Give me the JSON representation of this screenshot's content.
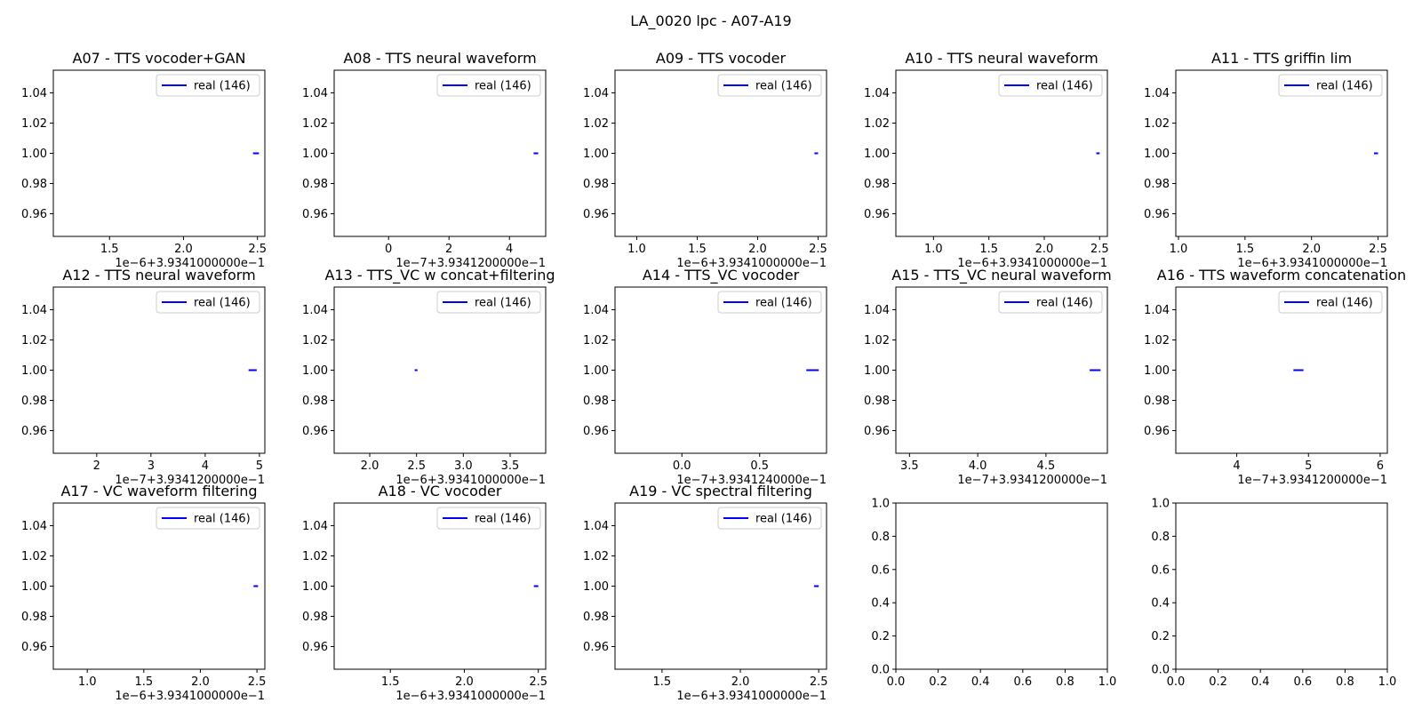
{
  "figure": {
    "suptitle": "LA_0020 lpc - A07-A19",
    "series_color": "#0000ff"
  },
  "chart_data": [
    {
      "type": "line",
      "title": "A07 - TTS vocoder+GAN",
      "xlim": [
        1.12,
        2.55
      ],
      "ylim": [
        0.945,
        1.055
      ],
      "xticks": [
        1.5,
        2.0,
        2.5
      ],
      "xtick_labels": [
        "1.5",
        "2.0",
        "2.5"
      ],
      "yticks": [
        0.96,
        0.98,
        1.0,
        1.02,
        1.04
      ],
      "ytick_labels": [
        "0.96",
        "0.98",
        "1.00",
        "1.02",
        "1.04"
      ],
      "offset": "1e−6+3.9341000000e−1",
      "legend": "real (146)",
      "legend_loc": "upper right",
      "series": [
        {
          "name": "real (146)",
          "x": [
            2.47,
            2.51
          ],
          "y": [
            1.0,
            1.0
          ]
        }
      ]
    },
    {
      "type": "line",
      "title": "A08 - TTS neural waveform",
      "xlim": [
        -1.8,
        5.2
      ],
      "ylim": [
        0.945,
        1.055
      ],
      "xticks": [
        0,
        2,
        4
      ],
      "xtick_labels": [
        "0",
        "2",
        "4"
      ],
      "yticks": [
        0.96,
        0.98,
        1.0,
        1.02,
        1.04
      ],
      "ytick_labels": [
        "0.96",
        "0.98",
        "1.00",
        "1.02",
        "1.04"
      ],
      "offset": "1e−7+3.9341200000e−1",
      "legend": "real (146)",
      "legend_loc": "upper right",
      "series": [
        {
          "name": "real (146)",
          "x": [
            4.8,
            4.95
          ],
          "y": [
            1.0,
            1.0
          ]
        }
      ]
    },
    {
      "type": "line",
      "title": "A09 - TTS vocoder",
      "xlim": [
        0.82,
        2.57
      ],
      "ylim": [
        0.945,
        1.055
      ],
      "xticks": [
        1.0,
        1.5,
        2.0,
        2.5
      ],
      "xtick_labels": [
        "1.0",
        "1.5",
        "2.0",
        "2.5"
      ],
      "yticks": [
        0.96,
        0.98,
        1.0,
        1.02,
        1.04
      ],
      "ytick_labels": [
        "0.96",
        "0.98",
        "1.00",
        "1.02",
        "1.04"
      ],
      "offset": "1e−6+3.9341000000e−1",
      "legend": "real (146)",
      "legend_loc": "upper right",
      "series": [
        {
          "name": "real (146)",
          "x": [
            2.47,
            2.5
          ],
          "y": [
            1.0,
            1.0
          ]
        }
      ]
    },
    {
      "type": "line",
      "title": "A10 - TTS neural waveform",
      "xlim": [
        0.66,
        2.57
      ],
      "ylim": [
        0.945,
        1.055
      ],
      "xticks": [
        1.0,
        1.5,
        2.0,
        2.5
      ],
      "xtick_labels": [
        "1.0",
        "1.5",
        "2.0",
        "2.5"
      ],
      "yticks": [
        0.96,
        0.98,
        1.0,
        1.02,
        1.04
      ],
      "ytick_labels": [
        "0.96",
        "0.98",
        "1.00",
        "1.02",
        "1.04"
      ],
      "offset": "1e−6+3.9341000000e−1",
      "legend": "real (146)",
      "legend_loc": "upper right",
      "series": [
        {
          "name": "real (146)",
          "x": [
            2.47,
            2.5
          ],
          "y": [
            1.0,
            1.0
          ]
        }
      ]
    },
    {
      "type": "line",
      "title": "A11 - TTS griffin lim",
      "xlim": [
        0.98,
        2.57
      ],
      "ylim": [
        0.945,
        1.055
      ],
      "xticks": [
        1.0,
        1.5,
        2.0,
        2.5
      ],
      "xtick_labels": [
        "1.0",
        "1.5",
        "2.0",
        "2.5"
      ],
      "yticks": [
        0.96,
        0.98,
        1.0,
        1.02,
        1.04
      ],
      "ytick_labels": [
        "0.96",
        "0.98",
        "1.00",
        "1.02",
        "1.04"
      ],
      "offset": "1e−6+3.9341000000e−1",
      "legend": "real (146)",
      "legend_loc": "upper right",
      "series": [
        {
          "name": "real (146)",
          "x": [
            2.47,
            2.5
          ],
          "y": [
            1.0,
            1.0
          ]
        }
      ]
    },
    {
      "type": "line",
      "title": "A12 - TTS neural waveform",
      "xlim": [
        1.2,
        5.1
      ],
      "ylim": [
        0.945,
        1.055
      ],
      "xticks": [
        2,
        3,
        4,
        5
      ],
      "xtick_labels": [
        "2",
        "3",
        "4",
        "5"
      ],
      "yticks": [
        0.96,
        0.98,
        1.0,
        1.02,
        1.04
      ],
      "ytick_labels": [
        "0.96",
        "0.98",
        "1.00",
        "1.02",
        "1.04"
      ],
      "offset": "1e−7+3.9341200000e−1",
      "legend": "real (146)",
      "legend_loc": "upper right",
      "series": [
        {
          "name": "real (146)",
          "x": [
            4.8,
            4.95
          ],
          "y": [
            1.0,
            1.0
          ]
        }
      ]
    },
    {
      "type": "line",
      "title": "A13 - TTS_VC w concat+filtering",
      "xlim": [
        1.62,
        3.88
      ],
      "ylim": [
        0.945,
        1.055
      ],
      "xticks": [
        2.0,
        2.5,
        3.0,
        3.5
      ],
      "xtick_labels": [
        "2.0",
        "2.5",
        "3.0",
        "3.5"
      ],
      "yticks": [
        0.96,
        0.98,
        1.0,
        1.02,
        1.04
      ],
      "ytick_labels": [
        "0.96",
        "0.98",
        "1.00",
        "1.02",
        "1.04"
      ],
      "offset": "1e−6+3.9341000000e−1",
      "legend": "real (146)",
      "legend_loc": "upper right",
      "series": [
        {
          "name": "real (146)",
          "x": [
            2.48,
            2.51
          ],
          "y": [
            1.0,
            1.0
          ]
        }
      ]
    },
    {
      "type": "line",
      "title": "A14 - TTS_VC vocoder",
      "xlim": [
        -0.43,
        0.93
      ],
      "ylim": [
        0.945,
        1.055
      ],
      "xticks": [
        0.0,
        0.5
      ],
      "xtick_labels": [
        "0.0",
        "0.5"
      ],
      "yticks": [
        0.96,
        0.98,
        1.0,
        1.02,
        1.04
      ],
      "ytick_labels": [
        "0.96",
        "0.98",
        "1.00",
        "1.02",
        "1.04"
      ],
      "offset": "1e−7+3.9341240000e−1",
      "legend": "real (146)",
      "legend_loc": "upper right",
      "series": [
        {
          "name": "real (146)",
          "x": [
            0.8,
            0.88
          ],
          "y": [
            1.0,
            1.0
          ]
        }
      ]
    },
    {
      "type": "line",
      "title": "A15 - TTS_VC neural waveform",
      "xlim": [
        3.4,
        4.95
      ],
      "ylim": [
        0.945,
        1.055
      ],
      "xticks": [
        3.5,
        4.0,
        4.5
      ],
      "xtick_labels": [
        "3.5",
        "4.0",
        "4.5"
      ],
      "yticks": [
        0.96,
        0.98,
        1.0,
        1.02,
        1.04
      ],
      "ytick_labels": [
        "0.96",
        "0.98",
        "1.00",
        "1.02",
        "1.04"
      ],
      "offset": "1e−7+3.9341200000e−1",
      "legend": "real (146)",
      "legend_loc": "upper right",
      "series": [
        {
          "name": "real (146)",
          "x": [
            4.82,
            4.9
          ],
          "y": [
            1.0,
            1.0
          ]
        }
      ]
    },
    {
      "type": "line",
      "title": "A16 - TTS waveform concatenation",
      "xlim": [
        3.15,
        6.1
      ],
      "ylim": [
        0.945,
        1.055
      ],
      "xticks": [
        4,
        5,
        6
      ],
      "xtick_labels": [
        "4",
        "5",
        "6"
      ],
      "yticks": [
        0.96,
        0.98,
        1.0,
        1.02,
        1.04
      ],
      "ytick_labels": [
        "0.96",
        "0.98",
        "1.00",
        "1.02",
        "1.04"
      ],
      "offset": "1e−7+3.9341200000e−1",
      "legend": "real (146)",
      "legend_loc": "upper right",
      "series": [
        {
          "name": "real (146)",
          "x": [
            4.79,
            4.93
          ],
          "y": [
            1.0,
            1.0
          ]
        }
      ]
    },
    {
      "type": "line",
      "title": "A17 - VC waveform filtering",
      "xlim": [
        0.7,
        2.57
      ],
      "ylim": [
        0.945,
        1.055
      ],
      "xticks": [
        1.0,
        1.5,
        2.0,
        2.5
      ],
      "xtick_labels": [
        "1.0",
        "1.5",
        "2.0",
        "2.5"
      ],
      "yticks": [
        0.96,
        0.98,
        1.0,
        1.02,
        1.04
      ],
      "ytick_labels": [
        "0.96",
        "0.98",
        "1.00",
        "1.02",
        "1.04"
      ],
      "offset": "1e−6+3.9341000000e−1",
      "legend": "real (146)",
      "legend_loc": "upper right",
      "series": [
        {
          "name": "real (146)",
          "x": [
            2.47,
            2.51
          ],
          "y": [
            1.0,
            1.0
          ]
        }
      ]
    },
    {
      "type": "line",
      "title": "A18 - VC vocoder",
      "xlim": [
        1.12,
        2.55
      ],
      "ylim": [
        0.945,
        1.055
      ],
      "xticks": [
        1.5,
        2.0,
        2.5
      ],
      "xtick_labels": [
        "1.5",
        "2.0",
        "2.5"
      ],
      "yticks": [
        0.96,
        0.98,
        1.0,
        1.02,
        1.04
      ],
      "ytick_labels": [
        "0.96",
        "0.98",
        "1.00",
        "1.02",
        "1.04"
      ],
      "offset": "1e−6+3.9341000000e−1",
      "legend": "real (146)",
      "legend_loc": "upper right",
      "series": [
        {
          "name": "real (146)",
          "x": [
            2.47,
            2.5
          ],
          "y": [
            1.0,
            1.0
          ]
        }
      ]
    },
    {
      "type": "line",
      "title": "A19 - VC spectral filtering",
      "xlim": [
        1.2,
        2.55
      ],
      "ylim": [
        0.945,
        1.055
      ],
      "xticks": [
        1.5,
        2.0,
        2.5
      ],
      "xtick_labels": [
        "1.5",
        "2.0",
        "2.5"
      ],
      "yticks": [
        0.96,
        0.98,
        1.0,
        1.02,
        1.04
      ],
      "ytick_labels": [
        "0.96",
        "0.98",
        "1.00",
        "1.02",
        "1.04"
      ],
      "offset": "1e−6+3.9341000000e−1",
      "legend": "real (146)",
      "legend_loc": "upper right",
      "series": [
        {
          "name": "real (146)",
          "x": [
            2.47,
            2.5
          ],
          "y": [
            1.0,
            1.0
          ]
        }
      ]
    },
    {
      "type": "line",
      "title": "",
      "xlim": [
        0,
        1
      ],
      "ylim": [
        0,
        1
      ],
      "xticks": [
        0,
        0.2,
        0.4,
        0.6,
        0.8,
        1.0
      ],
      "xtick_labels": [
        "0.0",
        "0.2",
        "0.4",
        "0.6",
        "0.8",
        "1.0"
      ],
      "yticks": [
        0,
        0.2,
        0.4,
        0.6,
        0.8,
        1.0
      ],
      "ytick_labels": [
        "0.0",
        "0.2",
        "0.4",
        "0.6",
        "0.8",
        "1.0"
      ],
      "offset": "",
      "legend": "",
      "legend_loc": "",
      "series": []
    },
    {
      "type": "line",
      "title": "",
      "xlim": [
        0,
        1
      ],
      "ylim": [
        0,
        1
      ],
      "xticks": [
        0,
        0.2,
        0.4,
        0.6,
        0.8,
        1.0
      ],
      "xtick_labels": [
        "0.0",
        "0.2",
        "0.4",
        "0.6",
        "0.8",
        "1.0"
      ],
      "yticks": [
        0,
        0.2,
        0.4,
        0.6,
        0.8,
        1.0
      ],
      "ytick_labels": [
        "0.0",
        "0.2",
        "0.4",
        "0.6",
        "0.8",
        "1.0"
      ],
      "offset": "",
      "legend": "",
      "legend_loc": "",
      "series": []
    }
  ]
}
